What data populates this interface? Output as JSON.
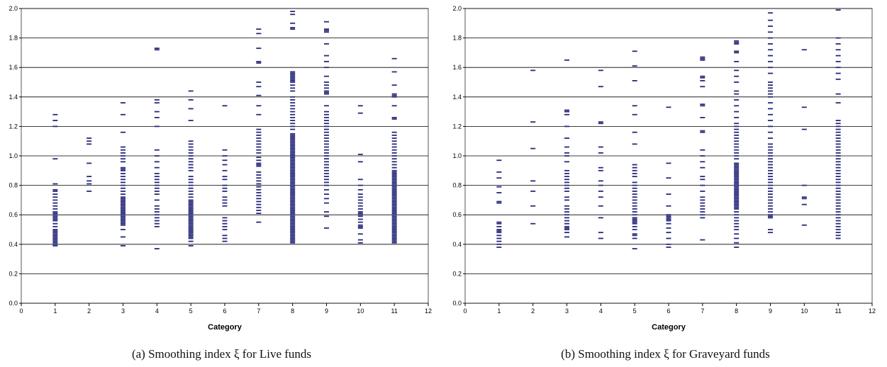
{
  "chart_data": [
    {
      "type": "scatter",
      "marker": "horizontal-dash",
      "color": "#27297a",
      "caption": "(a) Smoothing index ξ for Live funds",
      "xlabel": "Category",
      "ylabel": "",
      "xlim": [
        0,
        12
      ],
      "ylim": [
        0,
        2.0
      ],
      "xticks": [
        "0",
        "1",
        "2",
        "3",
        "4",
        "5",
        "6",
        "7",
        "8",
        "9",
        "10",
        "11",
        "12"
      ],
      "yticks": [
        "0.0",
        "0.2",
        "0.4",
        "0.6",
        "0.8",
        "1.0",
        "1.2",
        "1.4",
        "1.6",
        "1.8",
        "2.0"
      ],
      "grid": "horizontal",
      "points": [
        {
          "x": 1,
          "y": [
            0.39,
            0.4,
            0.41,
            0.42,
            0.43,
            0.44,
            0.45,
            0.46,
            0.47,
            0.48,
            0.49,
            0.5,
            0.52,
            0.54,
            0.56,
            0.57,
            0.58,
            0.59,
            0.6,
            0.61,
            0.62,
            0.64,
            0.66,
            0.68,
            0.7,
            0.72,
            0.74,
            0.76,
            0.77,
            0.81,
            0.98,
            1.2,
            1.24,
            1.28
          ]
        },
        {
          "x": 2,
          "y": [
            0.76,
            0.81,
            0.83,
            0.86,
            0.95,
            1.08,
            1.1,
            1.12
          ]
        },
        {
          "x": 3,
          "y": [
            0.39,
            0.45,
            0.5,
            0.53,
            0.54,
            0.55,
            0.56,
            0.57,
            0.58,
            0.59,
            0.6,
            0.61,
            0.62,
            0.63,
            0.64,
            0.65,
            0.66,
            0.67,
            0.68,
            0.69,
            0.7,
            0.71,
            0.72,
            0.74,
            0.76,
            0.78,
            0.8,
            0.82,
            0.84,
            0.86,
            0.88,
            0.9,
            0.91,
            0.92,
            0.96,
            0.98,
            1.0,
            1.02,
            1.04,
            1.06,
            1.16,
            1.28,
            1.36
          ]
        },
        {
          "x": 4,
          "y": [
            0.37,
            0.52,
            0.54,
            0.56,
            0.58,
            0.6,
            0.62,
            0.64,
            0.66,
            0.7,
            0.74,
            0.76,
            0.78,
            0.8,
            0.82,
            0.84,
            0.86,
            0.88,
            0.92,
            0.96,
            1.0,
            1.04,
            1.2,
            1.26,
            1.3,
            1.36,
            1.38,
            1.72,
            1.73
          ]
        },
        {
          "x": 5,
          "y": [
            0.39,
            0.42,
            0.44,
            0.45,
            0.46,
            0.47,
            0.48,
            0.49,
            0.5,
            0.51,
            0.52,
            0.53,
            0.54,
            0.55,
            0.56,
            0.57,
            0.58,
            0.59,
            0.6,
            0.61,
            0.62,
            0.63,
            0.64,
            0.65,
            0.66,
            0.67,
            0.68,
            0.69,
            0.7,
            0.72,
            0.74,
            0.76,
            0.78,
            0.8,
            0.82,
            0.84,
            0.86,
            0.9,
            0.92,
            0.94,
            0.96,
            0.98,
            1.0,
            1.02,
            1.04,
            1.06,
            1.08,
            1.1,
            1.24,
            1.32,
            1.38,
            1.44
          ]
        },
        {
          "x": 6,
          "y": [
            0.42,
            0.44,
            0.46,
            0.5,
            0.52,
            0.54,
            0.56,
            0.58,
            0.66,
            0.68,
            0.7,
            0.72,
            0.76,
            0.78,
            0.8,
            0.84,
            0.86,
            0.9,
            0.94,
            0.97,
            1.0,
            1.04,
            1.34
          ]
        },
        {
          "x": 7,
          "y": [
            0.55,
            0.61,
            0.63,
            0.65,
            0.67,
            0.69,
            0.71,
            0.73,
            0.75,
            0.77,
            0.79,
            0.81,
            0.83,
            0.85,
            0.87,
            0.89,
            0.93,
            0.94,
            0.95,
            0.97,
            0.99,
            1.02,
            1.04,
            1.06,
            1.08,
            1.1,
            1.12,
            1.14,
            1.16,
            1.18,
            1.28,
            1.34,
            1.41,
            1.47,
            1.5,
            1.63,
            1.64,
            1.73,
            1.83,
            1.86
          ]
        },
        {
          "x": 8,
          "y": [
            0.41,
            0.42,
            0.43,
            0.44,
            0.45,
            0.46,
            0.47,
            0.48,
            0.49,
            0.5,
            0.51,
            0.52,
            0.53,
            0.54,
            0.55,
            0.56,
            0.57,
            0.58,
            0.59,
            0.6,
            0.61,
            0.62,
            0.63,
            0.64,
            0.65,
            0.66,
            0.67,
            0.68,
            0.69,
            0.7,
            0.71,
            0.72,
            0.73,
            0.74,
            0.75,
            0.76,
            0.77,
            0.78,
            0.79,
            0.8,
            0.81,
            0.82,
            0.83,
            0.84,
            0.85,
            0.86,
            0.87,
            0.88,
            0.89,
            0.9,
            0.91,
            0.92,
            0.93,
            0.94,
            0.95,
            0.96,
            0.97,
            0.98,
            0.99,
            1.0,
            1.01,
            1.02,
            1.03,
            1.04,
            1.05,
            1.06,
            1.07,
            1.08,
            1.09,
            1.1,
            1.11,
            1.12,
            1.13,
            1.14,
            1.15,
            1.18,
            1.2,
            1.22,
            1.24,
            1.26,
            1.28,
            1.3,
            1.32,
            1.34,
            1.36,
            1.38,
            1.4,
            1.44,
            1.46,
            1.48,
            1.5,
            1.51,
            1.52,
            1.53,
            1.54,
            1.55,
            1.56,
            1.57,
            1.86,
            1.87,
            1.9,
            1.96,
            1.98
          ]
        },
        {
          "x": 9,
          "y": [
            0.51,
            0.59,
            0.62,
            0.68,
            0.71,
            0.74,
            0.77,
            0.8,
            0.82,
            0.84,
            0.86,
            0.88,
            0.9,
            0.92,
            0.94,
            0.96,
            0.98,
            1.0,
            1.02,
            1.04,
            1.06,
            1.08,
            1.1,
            1.12,
            1.14,
            1.16,
            1.18,
            1.2,
            1.22,
            1.24,
            1.26,
            1.28,
            1.3,
            1.34,
            1.42,
            1.43,
            1.44,
            1.46,
            1.48,
            1.5,
            1.54,
            1.6,
            1.64,
            1.68,
            1.76,
            1.84,
            1.85,
            1.86,
            1.91
          ]
        },
        {
          "x": 10,
          "y": [
            0.41,
            0.43,
            0.47,
            0.51,
            0.52,
            0.53,
            0.55,
            0.57,
            0.59,
            0.6,
            0.61,
            0.62,
            0.64,
            0.66,
            0.68,
            0.7,
            0.72,
            0.74,
            0.77,
            0.8,
            0.84,
            0.96,
            1.01,
            1.29,
            1.34
          ]
        },
        {
          "x": 11,
          "y": [
            0.41,
            0.42,
            0.43,
            0.44,
            0.45,
            0.46,
            0.47,
            0.48,
            0.49,
            0.5,
            0.51,
            0.52,
            0.53,
            0.54,
            0.55,
            0.56,
            0.57,
            0.58,
            0.59,
            0.6,
            0.61,
            0.62,
            0.63,
            0.64,
            0.65,
            0.66,
            0.67,
            0.68,
            0.69,
            0.7,
            0.71,
            0.72,
            0.73,
            0.74,
            0.75,
            0.76,
            0.77,
            0.78,
            0.79,
            0.8,
            0.81,
            0.82,
            0.83,
            0.84,
            0.85,
            0.86,
            0.87,
            0.88,
            0.89,
            0.9,
            0.92,
            0.94,
            0.96,
            0.98,
            1.0,
            1.02,
            1.04,
            1.06,
            1.08,
            1.1,
            1.12,
            1.14,
            1.16,
            1.25,
            1.26,
            1.34,
            1.4,
            1.41,
            1.42,
            1.48,
            1.57,
            1.66
          ]
        }
      ]
    },
    {
      "type": "scatter",
      "marker": "horizontal-dash",
      "color": "#27297a",
      "caption": "(b) Smoothing index ξ for Graveyard funds",
      "xlabel": "Category",
      "ylabel": "",
      "xlim": [
        0,
        12
      ],
      "ylim": [
        0,
        2.0
      ],
      "xticks": [
        "0",
        "1",
        "2",
        "3",
        "4",
        "5",
        "6",
        "7",
        "8",
        "9",
        "10",
        "11",
        "12"
      ],
      "yticks": [
        "0.0",
        "0.2",
        "0.4",
        "0.6",
        "0.8",
        "1.0",
        "1.2",
        "1.4",
        "1.6",
        "1.8",
        "2.0"
      ],
      "grid": "horizontal",
      "points": [
        {
          "x": 1,
          "y": [
            0.38,
            0.4,
            0.42,
            0.44,
            0.46,
            0.48,
            0.49,
            0.5,
            0.52,
            0.54,
            0.55,
            0.68,
            0.69,
            0.75,
            0.79,
            0.85,
            0.89,
            0.97
          ]
        },
        {
          "x": 2,
          "y": [
            0.54,
            0.66,
            0.76,
            0.83,
            1.05,
            1.23,
            1.58
          ]
        },
        {
          "x": 3,
          "y": [
            0.45,
            0.48,
            0.5,
            0.51,
            0.52,
            0.54,
            0.56,
            0.58,
            0.6,
            0.62,
            0.64,
            0.66,
            0.7,
            0.72,
            0.76,
            0.78,
            0.8,
            0.82,
            0.84,
            0.86,
            0.88,
            0.9,
            0.96,
            1.0,
            1.02,
            1.06,
            1.12,
            1.2,
            1.28,
            1.3,
            1.31,
            1.65
          ]
        },
        {
          "x": 4,
          "y": [
            0.44,
            0.48,
            0.58,
            0.66,
            0.72,
            0.76,
            0.8,
            0.83,
            0.9,
            0.92,
            1.02,
            1.06,
            1.22,
            1.23,
            1.47,
            1.58
          ]
        },
        {
          "x": 5,
          "y": [
            0.37,
            0.44,
            0.46,
            0.47,
            0.5,
            0.52,
            0.54,
            0.55,
            0.56,
            0.57,
            0.58,
            0.6,
            0.62,
            0.64,
            0.66,
            0.68,
            0.7,
            0.72,
            0.74,
            0.76,
            0.78,
            0.8,
            0.82,
            0.86,
            0.88,
            0.9,
            0.92,
            0.94,
            1.08,
            1.16,
            1.28,
            1.34,
            1.51,
            1.61,
            1.71
          ]
        },
        {
          "x": 6,
          "y": [
            0.38,
            0.4,
            0.44,
            0.48,
            0.51,
            0.54,
            0.56,
            0.57,
            0.58,
            0.59,
            0.6,
            0.66,
            0.74,
            0.85,
            0.95,
            1.33
          ]
        },
        {
          "x": 7,
          "y": [
            0.43,
            0.58,
            0.6,
            0.62,
            0.64,
            0.66,
            0.68,
            0.7,
            0.72,
            0.76,
            0.8,
            0.84,
            0.86,
            0.92,
            0.96,
            1.0,
            1.04,
            1.16,
            1.17,
            1.26,
            1.34,
            1.35,
            1.47,
            1.51,
            1.53,
            1.54,
            1.65,
            1.66,
            1.67
          ]
        },
        {
          "x": 8,
          "y": [
            0.38,
            0.41,
            0.44,
            0.47,
            0.5,
            0.52,
            0.54,
            0.56,
            0.58,
            0.6,
            0.62,
            0.64,
            0.65,
            0.66,
            0.67,
            0.68,
            0.69,
            0.7,
            0.71,
            0.72,
            0.73,
            0.74,
            0.75,
            0.76,
            0.77,
            0.78,
            0.79,
            0.8,
            0.81,
            0.82,
            0.83,
            0.84,
            0.85,
            0.86,
            0.87,
            0.88,
            0.89,
            0.9,
            0.91,
            0.92,
            0.93,
            0.94,
            0.95,
            0.98,
            1.0,
            1.02,
            1.04,
            1.06,
            1.08,
            1.1,
            1.12,
            1.14,
            1.16,
            1.18,
            1.2,
            1.22,
            1.26,
            1.3,
            1.34,
            1.38,
            1.42,
            1.44,
            1.5,
            1.54,
            1.58,
            1.64,
            1.7,
            1.71,
            1.76,
            1.77,
            1.78
          ]
        },
        {
          "x": 9,
          "y": [
            0.48,
            0.5,
            0.58,
            0.59,
            0.6,
            0.62,
            0.64,
            0.66,
            0.68,
            0.7,
            0.72,
            0.74,
            0.76,
            0.78,
            0.8,
            0.82,
            0.84,
            0.86,
            0.88,
            0.9,
            0.92,
            0.94,
            0.96,
            0.98,
            1.0,
            1.02,
            1.04,
            1.06,
            1.08,
            1.12,
            1.16,
            1.2,
            1.24,
            1.28,
            1.32,
            1.36,
            1.4,
            1.42,
            1.44,
            1.46,
            1.48,
            1.5,
            1.56,
            1.6,
            1.64,
            1.68,
            1.72,
            1.76,
            1.8,
            1.84,
            1.88,
            1.92,
            1.97
          ]
        },
        {
          "x": 10,
          "y": [
            0.53,
            0.67,
            0.71,
            0.72,
            0.8,
            1.18,
            1.33,
            1.72
          ]
        },
        {
          "x": 11,
          "y": [
            0.44,
            0.46,
            0.48,
            0.5,
            0.52,
            0.54,
            0.56,
            0.58,
            0.6,
            0.62,
            0.64,
            0.66,
            0.68,
            0.7,
            0.72,
            0.74,
            0.76,
            0.78,
            0.8,
            0.82,
            0.84,
            0.86,
            0.88,
            0.9,
            0.92,
            0.94,
            0.96,
            0.98,
            1.0,
            1.02,
            1.04,
            1.06,
            1.08,
            1.1,
            1.12,
            1.14,
            1.16,
            1.18,
            1.2,
            1.22,
            1.24,
            1.36,
            1.42,
            1.52,
            1.56,
            1.6,
            1.64,
            1.68,
            1.72,
            1.76,
            1.8,
            1.99
          ]
        }
      ]
    }
  ]
}
